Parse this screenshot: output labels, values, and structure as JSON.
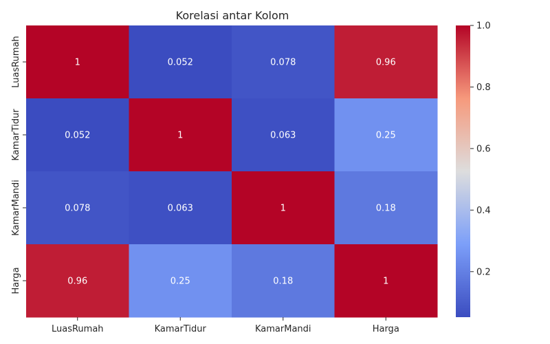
{
  "chart_data": {
    "type": "heatmap",
    "title": "Korelasi antar Kolom",
    "xlabel": "",
    "ylabel": "",
    "x_labels": [
      "LuasRumah",
      "KamarTidur",
      "KamarMandi",
      "Harga"
    ],
    "y_labels": [
      "LuasRumah",
      "KamarTidur",
      "KamarMandi",
      "Harga"
    ],
    "values": [
      [
        1,
        0.052,
        0.078,
        0.96
      ],
      [
        0.052,
        1,
        0.063,
        0.25
      ],
      [
        0.078,
        0.063,
        1,
        0.18
      ],
      [
        0.96,
        0.25,
        0.18,
        1
      ]
    ],
    "annotations": [
      [
        "1",
        "0.052",
        "0.078",
        "0.96"
      ],
      [
        "0.052",
        "1",
        "0.063",
        "0.25"
      ],
      [
        "0.078",
        "0.063",
        "1",
        "0.18"
      ],
      [
        "0.96",
        "0.25",
        "0.18",
        "1"
      ]
    ],
    "colormap": "coolwarm",
    "colorbar": {
      "range": [
        0.052,
        1.0
      ],
      "ticks": [
        0.2,
        0.4,
        0.6,
        0.8,
        1.0
      ],
      "tick_labels": [
        "0.2",
        "0.4",
        "0.6",
        "0.8",
        "1.0"
      ]
    },
    "annotation_color": "#ffffff"
  }
}
